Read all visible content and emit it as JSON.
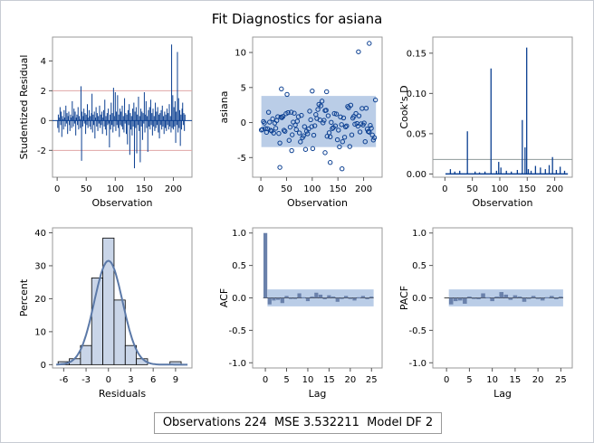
{
  "title": "Fit Diagnostics for asiana",
  "colors": {
    "line": "#0b3f91",
    "band": "#aec4e3",
    "bar_fill": "#c9d5e8",
    "spike": "#6a81ab",
    "ref": "#e0a6a6",
    "frame": "#9a9a9a"
  },
  "footer": {
    "obs_label": "Observations",
    "obs_value": "224",
    "mse_label": "MSE",
    "mse_value": "3.532211",
    "df_label": "Model DF",
    "df_value": "2"
  },
  "chart_data": [
    {
      "type": "bar",
      "id": "studentized",
      "xlabel": "Observation",
      "ylabel": "Studentized Residual",
      "xlim": [
        -8,
        232
      ],
      "ylim": [
        -3.8,
        5.6
      ],
      "xticks": [
        0,
        50,
        100,
        150,
        200
      ],
      "yticks": [
        -2,
        0,
        2,
        4
      ],
      "reflines": [
        -2,
        2
      ],
      "values": [
        -0.5,
        0.4,
        -0.8,
        0.2,
        0.9,
        -0.3,
        0.6,
        -1.1,
        0.3,
        0.1,
        -0.6,
        0.7,
        0.2,
        -0.4,
        1.0,
        -0.2,
        0.5,
        -0.9,
        0.3,
        0.6,
        -0.3,
        -0.7,
        0.4,
        0.2,
        -0.5,
        1.3,
        0.3,
        -0.4,
        0.8,
        -0.2,
        0.6,
        -1.0,
        0.2,
        0.4,
        -0.3,
        0.9,
        -0.6,
        0.3,
        0.1,
        -0.5,
        2.3,
        -2.7,
        0.6,
        -0.4,
        0.3,
        0.8,
        -0.2,
        0.5,
        -0.9,
        0.4,
        -0.3,
        1.1,
        -0.5,
        0.2,
        0.7,
        -0.4,
        0.3,
        -0.6,
        0.5,
        1.8,
        -0.8,
        0.4,
        -0.3,
        0.6,
        -1.2,
        0.2,
        0.9,
        -0.4,
        0.5,
        -0.7,
        0.3,
        -0.2,
        1.0,
        -0.5,
        0.4,
        -0.3,
        0.6,
        -0.9,
        0.2,
        0.7,
        -0.4,
        1.4,
        -0.6,
        0.3,
        -1.0,
        0.5,
        -0.3,
        0.8,
        -0.2,
        -1.8,
        0.4,
        -0.6,
        1.2,
        -0.3,
        0.5,
        -0.8,
        2.2,
        -0.4,
        0.3,
        1.9,
        -0.7,
        0.6,
        -0.3,
        1.7,
        -0.5,
        0.4,
        -1.1,
        0.8,
        -0.3,
        0.6,
        -0.4,
        1.0,
        -0.6,
        0.3,
        -0.8,
        1.5,
        -0.2,
        0.5,
        -0.9,
        0.4,
        -1.6,
        0.7,
        -0.3,
        1.1,
        -2.3,
        0.5,
        -0.6,
        0.3,
        -1.0,
        0.8,
        -0.4,
        1.2,
        -3.2,
        0.6,
        -0.5,
        0.9,
        -2.2,
        0.4,
        -0.3,
        1.6,
        -0.7,
        0.3,
        -2.8,
        0.8,
        -0.4,
        0.6,
        -1.3,
        0.5,
        -0.2,
        1.9,
        -0.8,
        0.4,
        1.3,
        -0.5,
        0.3,
        -2.1,
        0.7,
        -0.4,
        0.9,
        -0.6,
        1.4,
        -0.3,
        0.5,
        -1.0,
        0.8,
        -0.4,
        0.3,
        -0.7,
        1.2,
        -0.5,
        0.6,
        -0.3,
        0.9,
        -0.8,
        0.4,
        -1.2,
        0.5,
        -0.3,
        0.7,
        -0.6,
        1.0,
        -0.4,
        0.3,
        -0.9,
        0.6,
        -0.5,
        0.4,
        -0.7,
        0.8,
        -0.3,
        0.5,
        -0.6,
        1.1,
        -0.4,
        0.3,
        -0.8,
        5.1,
        -0.5,
        1.7,
        -0.6,
        0.9,
        -0.4,
        1.3,
        -1.5,
        0.6,
        -0.3,
        4.6,
        -0.8,
        1.5,
        -0.5,
        0.7,
        -1.7,
        0.4,
        -0.6,
        0.8,
        1.2,
        -0.3,
        0.5,
        -0.7,
        0.4
      ]
    },
    {
      "type": "scatter",
      "id": "fitted",
      "xlabel": "Observation",
      "ylabel": "asiana",
      "xlim": [
        -16,
        236
      ],
      "ylim": [
        -7.8,
        12.2
      ],
      "xticks": [
        0,
        50,
        100,
        150,
        200
      ],
      "yticks": [
        -5,
        0,
        5,
        10
      ],
      "band": [
        -3.5,
        3.8
      ],
      "outliers": [
        [
          37,
          -6.4
        ],
        [
          190,
          10.1
        ],
        [
          211,
          11.3
        ],
        [
          158,
          -6.6
        ],
        [
          125,
          -4.3
        ],
        [
          135,
          -5.7
        ],
        [
          40,
          4.8
        ],
        [
          100,
          4.5
        ],
        [
          128,
          4.4
        ],
        [
          60,
          -4.0
        ]
      ]
    },
    {
      "type": "bar",
      "id": "cooks",
      "xlabel": "Observation",
      "ylabel": "Cook's D",
      "xlim": [
        -22,
        232
      ],
      "ylim": [
        -0.004,
        0.17
      ],
      "xticks": [
        0,
        50,
        100,
        150,
        200
      ],
      "yticks": [
        0.0,
        0.05,
        0.1,
        0.15
      ],
      "ytick_labels": [
        "0.00",
        "0.05",
        "0.10",
        "0.15"
      ],
      "reflines": [
        0.018
      ],
      "spikes": [
        [
          10,
          0.006
        ],
        [
          18,
          0.003
        ],
        [
          27,
          0.004
        ],
        [
          41,
          0.053
        ],
        [
          55,
          0.003
        ],
        [
          63,
          0.002
        ],
        [
          73,
          0.003
        ],
        [
          84,
          0.131
        ],
        [
          94,
          0.004
        ],
        [
          98,
          0.015
        ],
        [
          102,
          0.008
        ],
        [
          112,
          0.004
        ],
        [
          121,
          0.003
        ],
        [
          132,
          0.005
        ],
        [
          141,
          0.067
        ],
        [
          146,
          0.033
        ],
        [
          149,
          0.157
        ],
        [
          152,
          0.006
        ],
        [
          157,
          0.004
        ],
        [
          165,
          0.01
        ],
        [
          174,
          0.008
        ],
        [
          183,
          0.006
        ],
        [
          190,
          0.011
        ],
        [
          196,
          0.021
        ],
        [
          203,
          0.005
        ],
        [
          210,
          0.009
        ],
        [
          218,
          0.004
        ]
      ]
    },
    {
      "type": "bar",
      "id": "histogram",
      "xlabel": "Residuals",
      "ylabel": "Percent",
      "xlim": [
        -7.5,
        11.2
      ],
      "ylim": [
        -1,
        41.5
      ],
      "xticks": [
        -6,
        -3,
        0,
        3,
        6,
        9
      ],
      "yticks": [
        0,
        10,
        20,
        30,
        40
      ],
      "bin_width": 1.5,
      "bins": [
        [
          -6,
          0.9
        ],
        [
          -4.5,
          1.8
        ],
        [
          -3,
          5.8
        ],
        [
          -1.5,
          26.3
        ],
        [
          0,
          38.4
        ],
        [
          1.5,
          19.6
        ],
        [
          3,
          5.8
        ],
        [
          4.5,
          1.8
        ],
        [
          9,
          0.9
        ]
      ],
      "normal_curve": {
        "mean": 0,
        "sd": 1.9,
        "peak": 31.5
      }
    },
    {
      "type": "bar",
      "id": "acf",
      "xlabel": "Lag",
      "ylabel": "ACF",
      "xlim": [
        -3,
        27.5
      ],
      "ylim": [
        -1.08,
        1.08
      ],
      "xticks": [
        0,
        5,
        10,
        15,
        20,
        25
      ],
      "yticks": [
        -1.0,
        -0.5,
        0.0,
        0.5,
        1.0
      ],
      "ytick_labels": [
        "-1.0",
        "-0.5",
        "0.0",
        "0.5",
        "1.0"
      ],
      "band": 0.131,
      "values": [
        1.0,
        -0.1,
        -0.04,
        -0.03,
        -0.08,
        0.03,
        0.0,
        -0.01,
        0.07,
        0.01,
        -0.05,
        0.02,
        0.08,
        0.05,
        -0.02,
        0.04,
        0.02,
        -0.06,
        0.0,
        0.03,
        -0.01,
        -0.04,
        0.01,
        0.03,
        -0.02,
        0.02
      ]
    },
    {
      "type": "bar",
      "id": "pacf",
      "xlabel": "Lag",
      "ylabel": "PACF",
      "xlim": [
        -3,
        27.5
      ],
      "ylim": [
        -1.08,
        1.08
      ],
      "xticks": [
        0,
        5,
        10,
        15,
        20,
        25
      ],
      "yticks": [
        -1.0,
        -0.5,
        0.0,
        0.5,
        1.0
      ],
      "ytick_labels": [
        "-1.0",
        "-0.5",
        "0.0",
        "0.5",
        "1.0"
      ],
      "band": 0.131,
      "values": [
        null,
        -0.1,
        -0.05,
        -0.04,
        -0.09,
        0.02,
        0.0,
        -0.02,
        0.07,
        0.01,
        -0.05,
        0.02,
        0.09,
        0.05,
        -0.03,
        0.04,
        0.02,
        -0.06,
        -0.01,
        0.03,
        -0.01,
        -0.04,
        0.01,
        0.03,
        -0.02,
        0.02
      ]
    }
  ]
}
